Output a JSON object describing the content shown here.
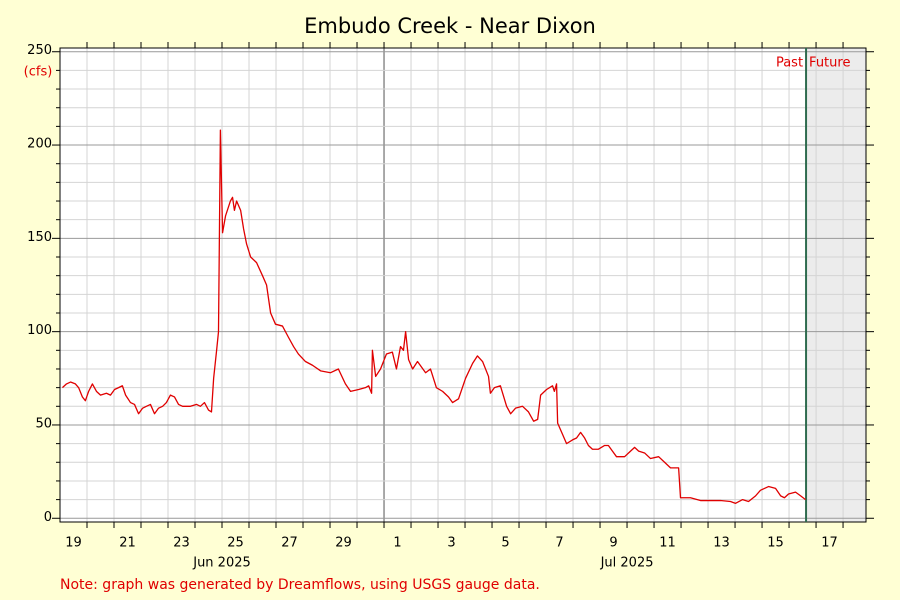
{
  "chart_data": {
    "type": "line",
    "title": "Embudo Creek - Near Dixon",
    "y_unit": "(cfs)",
    "note": "Note: graph was generated by Dreamflows, using USGS gauge data.",
    "color": "#e00000",
    "x": [
      0.09,
      0.24,
      0.39,
      0.57,
      0.69,
      0.83,
      0.94,
      1.06,
      1.2,
      1.35,
      1.5,
      1.72,
      1.87,
      2.02,
      2.17,
      2.31,
      2.43,
      2.61,
      2.76,
      2.91,
      3.06,
      3.2,
      3.35,
      3.5,
      3.65,
      3.8,
      3.94,
      4.09,
      4.24,
      4.39,
      4.54,
      4.83,
      5.06,
      5.2,
      5.35,
      5.5,
      5.61,
      5.69,
      5.8,
      5.87,
      5.94,
      6.02,
      6.13,
      6.31,
      6.39,
      6.46,
      6.54,
      6.69,
      6.8,
      6.91,
      7.06,
      7.28,
      7.5,
      7.65,
      7.8,
      7.98,
      8.24,
      8.46,
      8.65,
      8.83,
      9.09,
      9.35,
      9.65,
      10.02,
      10.31,
      10.57,
      10.76,
      11.06,
      11.31,
      11.43,
      11.54,
      11.57,
      11.69,
      11.87,
      12.09,
      12.31,
      12.46,
      12.61,
      12.72,
      12.8,
      12.91,
      13.06,
      13.24,
      13.54,
      13.72,
      13.94,
      14.17,
      14.39,
      14.54,
      14.76,
      15.02,
      15.28,
      15.46,
      15.65,
      15.87,
      15.94,
      16.09,
      16.31,
      16.54,
      16.69,
      16.87,
      17.13,
      17.35,
      17.54,
      17.69,
      17.8,
      18.02,
      18.24,
      18.31,
      18.39,
      18.43,
      18.61,
      18.76,
      18.98,
      19.13,
      19.28,
      19.43,
      19.57,
      19.72,
      19.94,
      20.17,
      20.31,
      20.46,
      20.61,
      20.91,
      21.13,
      21.28,
      21.43,
      21.65,
      21.87,
      22.17,
      22.39,
      22.61,
      22.91,
      22.98,
      23.35,
      23.72,
      24.46,
      24.83,
      25.02,
      25.28,
      25.5,
      25.76,
      25.94,
      26.24,
      26.5,
      26.69,
      26.83,
      26.98,
      27.24,
      27.43,
      27.61
    ],
    "values": [
      70,
      72,
      73,
      72,
      70,
      65,
      63,
      68,
      72,
      68,
      66,
      67,
      66,
      69,
      70,
      71,
      66,
      62,
      61,
      56,
      59,
      60,
      61,
      56,
      59,
      60,
      62,
      66,
      65,
      61,
      60,
      60,
      61,
      60,
      62,
      58,
      57,
      75,
      90,
      100,
      208,
      153,
      162,
      170,
      172,
      165,
      170,
      165,
      155,
      147,
      140,
      137,
      130,
      125,
      110,
      104,
      103,
      97,
      92,
      88,
      84,
      82,
      79,
      78,
      80,
      72,
      68,
      69,
      70,
      71,
      67,
      90,
      76,
      80,
      88,
      89,
      80,
      92,
      90,
      100,
      85,
      80,
      84,
      78,
      80,
      70,
      68,
      65,
      62,
      64,
      75,
      83,
      87,
      84,
      76,
      67,
      70,
      71,
      60,
      56,
      59,
      60,
      57,
      52,
      53,
      66,
      69,
      71,
      68,
      72,
      51,
      45,
      40,
      42,
      43,
      46,
      43,
      39,
      37,
      37,
      39,
      39,
      36,
      33,
      33,
      36,
      38,
      36,
      35,
      32,
      33,
      30,
      27,
      27,
      11,
      11,
      9.5,
      9.5,
      9,
      8,
      10,
      9,
      12,
      15,
      17,
      16,
      12,
      11,
      13,
      14,
      12,
      10
    ],
    "xlim": [
      0,
      29.85
    ],
    "xticks": [
      {
        "value": 0.5,
        "label": "19"
      },
      {
        "value": 2.5,
        "label": "21"
      },
      {
        "value": 4.5,
        "label": "23"
      },
      {
        "value": 6.5,
        "label": "25"
      },
      {
        "value": 8.5,
        "label": "27"
      },
      {
        "value": 10.5,
        "label": "29"
      },
      {
        "value": 12.5,
        "label": "1"
      },
      {
        "value": 14.5,
        "label": "3"
      },
      {
        "value": 16.5,
        "label": "5"
      },
      {
        "value": 18.5,
        "label": "7"
      },
      {
        "value": 20.5,
        "label": "9"
      },
      {
        "value": 22.5,
        "label": "11"
      },
      {
        "value": 24.5,
        "label": "13"
      },
      {
        "value": 26.5,
        "label": "15"
      },
      {
        "value": 28.5,
        "label": "17"
      }
    ],
    "month_labels": [
      {
        "value": 6,
        "label": "Jun 2025"
      },
      {
        "value": 21,
        "label": "Jul 2025"
      }
    ],
    "xgrid": [
      1,
      2,
      3,
      4,
      5,
      6,
      7,
      8,
      9,
      10,
      11,
      12,
      13,
      14,
      15,
      16,
      17,
      18,
      19,
      20,
      21,
      22,
      23,
      24,
      25,
      26,
      27,
      28,
      29
    ],
    "month_boundary": 12,
    "ylim": [
      -2,
      252
    ],
    "yticks": [
      0,
      50,
      100,
      150,
      200,
      250
    ],
    "y_minor_ticks": [
      10,
      20,
      30,
      40,
      60,
      70,
      80,
      90,
      110,
      120,
      130,
      140,
      160,
      170,
      180,
      190,
      210,
      220,
      230,
      240
    ],
    "grid": true,
    "now": {
      "value": 27.63,
      "past_label": "Past",
      "future_label": "Future",
      "color": "#2e6b4e",
      "future_fill": "#ececec"
    }
  }
}
